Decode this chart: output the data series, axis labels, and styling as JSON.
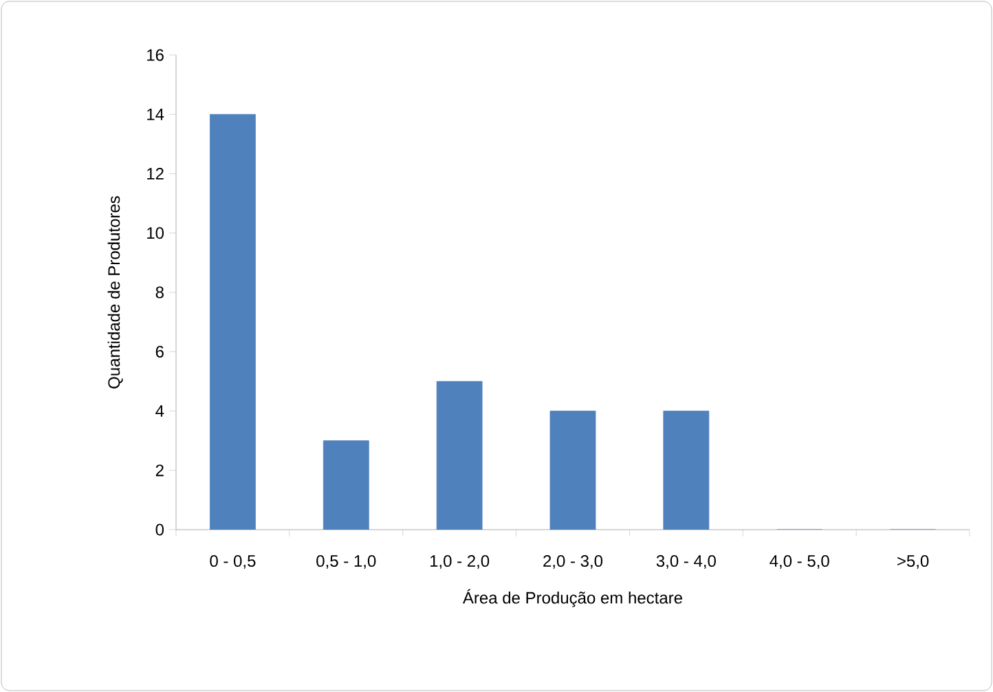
{
  "chart_data": {
    "type": "bar",
    "xlabel": "Área de Produção em hectare",
    "ylabel": "Quantidade de Produtores",
    "categories": [
      "0 - 0,5",
      "0,5 - 1,0",
      "1,0 - 2,0",
      "2,0 - 3,0",
      "3,0 - 4,0",
      "4,0 - 5,0",
      ">5,0"
    ],
    "values": [
      14,
      3,
      5,
      4,
      4,
      0,
      0
    ],
    "color": "#4f81bd",
    "ylim": [
      0,
      16
    ],
    "yticks": [
      0,
      2,
      4,
      6,
      8,
      10,
      12,
      14,
      16
    ]
  }
}
